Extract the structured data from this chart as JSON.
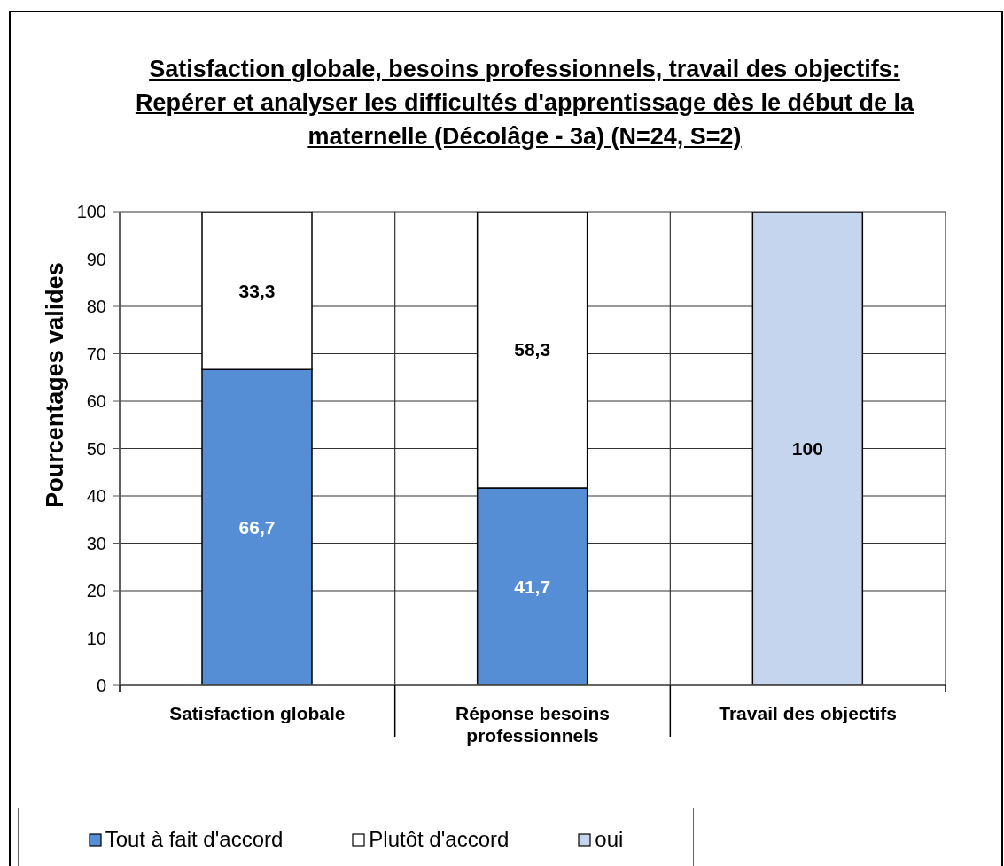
{
  "chart_data": {
    "type": "bar",
    "title": "Satisfaction globale, besoins professionnels, travail des objectifs: Repérer et analyser les difficultés d'apprentissage dès le début de la maternelle (Décolâge - 3a) (N=24, S=2)",
    "ylabel": "Pourcentages valides",
    "categories": [
      "Satisfaction globale",
      "Réponse besoins professionnels",
      "Travail des objectifs"
    ],
    "stacked": true,
    "series": [
      {
        "name": "Tout à fait d'accord",
        "color": "#558ed5",
        "values": [
          66.7,
          41.7,
          null
        ],
        "value_labels": [
          "66,7",
          "41,7",
          null
        ]
      },
      {
        "name": "Plutôt d'accord",
        "color": "#ffffff",
        "values": [
          33.3,
          58.3,
          null
        ],
        "value_labels": [
          "33,3",
          "58,3",
          null
        ]
      },
      {
        "name": "oui",
        "color": "#c6d5ee",
        "values": [
          null,
          null,
          100
        ],
        "value_labels": [
          null,
          null,
          "100"
        ]
      }
    ],
    "ylim": [
      0,
      100
    ],
    "yticks": [
      0,
      10,
      20,
      30,
      40,
      50,
      60,
      70,
      80,
      90,
      100
    ],
    "grid": true,
    "legend": "bottom left"
  }
}
